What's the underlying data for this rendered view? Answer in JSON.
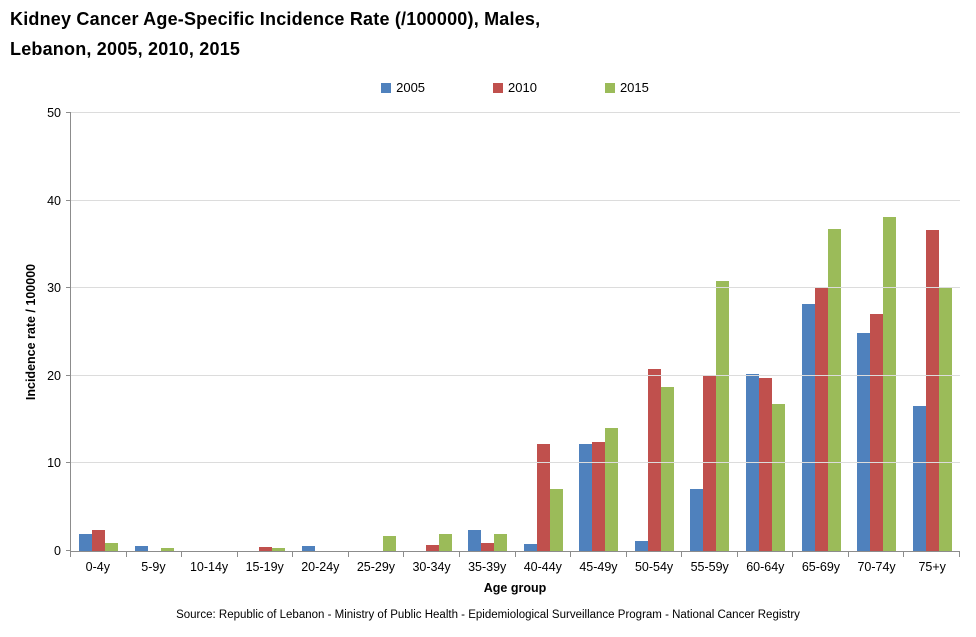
{
  "title_line1": "Kidney Cancer Age-Specific Incidence Rate (/100000), Males,",
  "title_line2": "Lebanon, 2005, 2010, 2015",
  "source": "Source: Republic of Lebanon - Ministry of Public Health - Epidemiological Surveillance Program - National Cancer Registry",
  "chart_data": {
    "type": "bar",
    "title": "Kidney Cancer Age-Specific Incidence Rate (/100000), Males, Lebanon, 2005, 2010, 2015",
    "categories": [
      "0-4y",
      "5-9y",
      "10-14y",
      "15-19y",
      "20-24y",
      "25-29y",
      "30-34y",
      "35-39y",
      "40-44y",
      "45-49y",
      "50-54y",
      "55-59y",
      "60-64y",
      "65-69y",
      "70-74y",
      "75+y"
    ],
    "series": [
      {
        "name": "2005",
        "color": "#4F81BD",
        "values": [
          1.9,
          0.6,
          0,
          0,
          0.6,
          0,
          0,
          2.4,
          0.8,
          12.2,
          1.1,
          7.1,
          20.2,
          28.2,
          24.9,
          16.5
        ]
      },
      {
        "name": "2010",
        "color": "#C0504D",
        "values": [
          2.4,
          0,
          0,
          0.5,
          0,
          0,
          0.7,
          0.9,
          12.2,
          12.5,
          20.8,
          20.0,
          19.8,
          30.0,
          27.0,
          36.6
        ]
      },
      {
        "name": "2015",
        "color": "#9BBB59",
        "values": [
          0.9,
          0.4,
          0,
          0.3,
          0,
          1.7,
          1.9,
          1.9,
          7.1,
          14.0,
          18.7,
          30.8,
          16.8,
          36.8,
          38.1,
          30.0
        ]
      }
    ],
    "xlabel": "Age group",
    "ylabel": "Incidence rate / 100000",
    "ylim": [
      0,
      50
    ],
    "ytick_step": 10,
    "grid": true,
    "legend_position": "top",
    "axis_color": "#8c8c8c",
    "grid_color": "#dcdcdc"
  }
}
